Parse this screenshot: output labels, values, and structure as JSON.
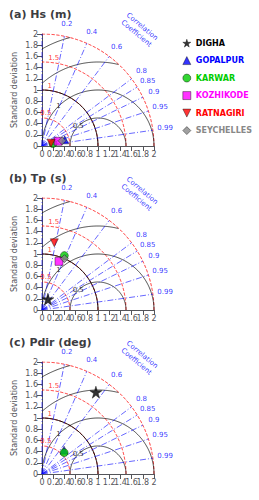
{
  "chart_data": [
    {
      "type": "taylor",
      "title": "(a) Hs (m)",
      "ylabel": "Standard deviation",
      "xlim": [
        0,
        2
      ],
      "xticks": [
        0,
        0.2,
        0.4,
        0.6,
        0.8,
        1,
        1.2,
        1.4,
        1.6,
        1.8,
        2
      ],
      "ylim": [
        0,
        2
      ],
      "yticks": [
        0,
        0.2,
        0.4,
        0.6,
        0.8,
        1,
        1.2,
        1.4,
        1.6,
        1.8,
        2
      ],
      "grid": false,
      "ref_std": {
        "value": 1.0,
        "color": "black"
      },
      "std_circles": {
        "values": [
          0.5,
          1.0,
          1.5,
          2.0
        ],
        "labels": [
          0.5,
          1.0,
          1.5
        ],
        "color": "red",
        "line_style": "dashed"
      },
      "crmsd_circles": {
        "values": [
          0.5,
          1.0,
          1.5,
          2.0
        ],
        "labels": [
          0.5,
          1.0
        ],
        "color": "black",
        "line_style": "solid"
      },
      "corr_lines": {
        "values": [
          0.0,
          0.2,
          0.4,
          0.6,
          0.8,
          0.85,
          0.9,
          0.95,
          0.99
        ],
        "labels": [
          0.2,
          0.4,
          0.6,
          0.8,
          0.85,
          0.9,
          0.95,
          0.99
        ],
        "title": "Correlation\nCoefficient",
        "color": "blue",
        "line_style": "dashdot"
      },
      "series": [
        {
          "name": "GOPALPUR",
          "color": "#0000FF",
          "marker": "triangle",
          "correlation": [
            0.965
          ],
          "values": [
            0.42
          ]
        },
        {
          "name": "KARWAR",
          "color": "#00CC00",
          "marker": "circle",
          "correlation": [
            0.975
          ],
          "values": [
            0.2
          ]
        },
        {
          "name": "KOZHIKODE",
          "color": "#FF00FF",
          "marker": "square",
          "correlation": [
            0.96
          ],
          "values": [
            0.3
          ]
        },
        {
          "name": "RATNAGIRI",
          "color": "#FF0000",
          "marker": "triangle-down",
          "correlation": [
            0.955
          ],
          "values": [
            0.17
          ]
        },
        {
          "name": "SEYCHELLES",
          "color": "#888888",
          "marker": "diamond",
          "correlation": [
            0.967
          ],
          "values": [
            0.37
          ]
        }
      ]
    },
    {
      "type": "taylor",
      "title": "(b) Tp (s)",
      "ylabel": "Standard deviation",
      "xlim": [
        0,
        2
      ],
      "xticks": [
        0,
        0.2,
        0.4,
        0.6,
        0.8,
        1,
        1.2,
        1.4,
        1.6,
        1.8,
        2
      ],
      "ylim": [
        0,
        2
      ],
      "yticks": [
        0,
        0.2,
        0.4,
        0.6,
        0.8,
        1,
        1.2,
        1.4,
        1.6,
        1.8,
        2
      ],
      "grid": false,
      "ref_std": {
        "value": 1.0,
        "color": "black"
      },
      "std_circles": {
        "values": [
          0.5,
          1.0,
          1.5,
          2.0
        ],
        "labels": [
          0.5,
          1.0,
          1.5
        ],
        "color": "red",
        "line_style": "dashed"
      },
      "crmsd_circles": {
        "values": [
          0.5,
          1.0,
          1.5,
          2.0
        ],
        "labels": [
          0.5,
          1.0
        ],
        "color": "black",
        "line_style": "solid"
      },
      "corr_lines": {
        "values": [
          0.0,
          0.2,
          0.4,
          0.6,
          0.8,
          0.85,
          0.9,
          0.95,
          0.99
        ],
        "labels": [
          0.2,
          0.4,
          0.6,
          0.8,
          0.85,
          0.9,
          0.95,
          0.99
        ],
        "title": "Correlation\nCoefficient",
        "color": "blue",
        "line_style": "dashdot"
      },
      "series": [
        {
          "name": "DIGHA",
          "color": "#000000",
          "marker": "star",
          "correlation": [
            0.48
          ],
          "values": [
            0.22
          ]
        },
        {
          "name": "KARWAR",
          "color": "#00CC00",
          "marker": "circle",
          "correlation": [
            0.38
          ],
          "values": [
            1.05
          ]
        },
        {
          "name": "KOZHIKODE",
          "color": "#FF00FF",
          "marker": "square",
          "correlation": [
            0.33
          ],
          "values": [
            0.92
          ]
        },
        {
          "name": "RATNAGIRI",
          "color": "#FF0000",
          "marker": "triangle-down",
          "correlation": [
            0.18
          ],
          "values": [
            1.22
          ]
        },
        {
          "name": "SEYCHELLES",
          "color": "#888888",
          "marker": "diamond",
          "correlation": [
            0.4
          ],
          "values": [
            1.0
          ]
        }
      ]
    },
    {
      "type": "taylor",
      "title": "(c) Pdir (deg)",
      "ylabel": "Standard deviation",
      "xlim": [
        0,
        2
      ],
      "xticks": [
        0,
        0.2,
        0.4,
        0.6,
        0.8,
        1,
        1.2,
        1.4,
        1.6,
        1.8,
        2
      ],
      "ylim": [
        0,
        2
      ],
      "yticks": [
        0,
        0.2,
        0.4,
        0.6,
        0.8,
        1,
        1.2,
        1.4,
        1.6,
        1.8,
        2
      ],
      "grid": false,
      "ref_std": {
        "value": 1.0,
        "color": "black"
      },
      "std_circles": {
        "values": [
          0.5,
          1.0,
          1.5,
          2.0
        ],
        "labels": [
          0.5,
          1.0,
          1.5
        ],
        "color": "red",
        "line_style": "dashed"
      },
      "crmsd_circles": {
        "values": [
          0.5,
          1.0,
          1.5,
          2.0
        ],
        "labels": [
          0.5,
          1.0
        ],
        "color": "black",
        "line_style": "solid"
      },
      "corr_lines": {
        "values": [
          0.0,
          0.2,
          0.4,
          0.6,
          0.8,
          0.85,
          0.9,
          0.95,
          0.99
        ],
        "labels": [
          0.2,
          0.4,
          0.6,
          0.8,
          0.85,
          0.9,
          0.95,
          0.99
        ],
        "title": "Correlation\nCoefficient",
        "color": "blue",
        "line_style": "dashdot"
      },
      "series": [
        {
          "name": "DIGHA",
          "color": "#000000",
          "marker": "star",
          "correlation": [
            0.55
          ],
          "values": [
            1.75
          ]
        },
        {
          "name": "GOPALPUR",
          "color": "#0000FF",
          "marker": "triangle",
          "correlation": [
            0.68
          ],
          "values": [
            0.58
          ]
        },
        {
          "name": "KARWAR",
          "color": "#00CC00",
          "marker": "circle",
          "correlation": [
            0.72
          ],
          "values": [
            0.55
          ]
        }
      ]
    }
  ],
  "legend": "top-right",
  "legend_items": [
    {
      "name": "DIGHA",
      "color": "#000000",
      "marker": "star"
    },
    {
      "name": "GOPALPUR",
      "color": "#0000FF",
      "marker": "triangle"
    },
    {
      "name": "KARWAR",
      "color": "#00CC00",
      "marker": "circle"
    },
    {
      "name": "KOZHIKODE",
      "color": "#FF00FF",
      "marker": "square"
    },
    {
      "name": "RATNAGIRI",
      "color": "#FF0000",
      "marker": "triangle-down"
    },
    {
      "name": "SEYCHELLES",
      "color": "#888888",
      "marker": "diamond"
    }
  ]
}
